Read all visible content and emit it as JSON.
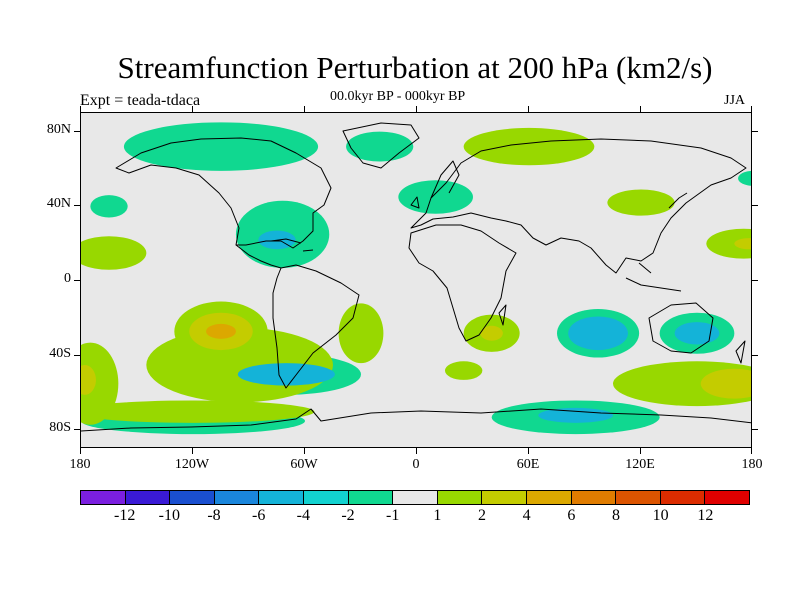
{
  "title": "Streamfunction Perturbation at 200 hPa (km2/s)",
  "left_label": "Expt = teada-tdaca",
  "center_label": "00.0kyr BP - 000kyr BP",
  "right_label": "JJA",
  "lat_labels": [
    "80N",
    "40N",
    "0",
    "40S",
    "80S"
  ],
  "lat_values": [
    80,
    40,
    0,
    -40,
    -80
  ],
  "lon_labels": [
    "180",
    "120W",
    "60W",
    "0",
    "60E",
    "120E",
    "180"
  ],
  "lon_values": [
    -180,
    -120,
    -60,
    0,
    60,
    120,
    180
  ],
  "colorbar": {
    "labels": [
      "-12",
      "-10",
      "-8",
      "-6",
      "-4",
      "-2",
      "-1",
      "1",
      "2",
      "4",
      "6",
      "8",
      "10",
      "12"
    ],
    "colors": [
      "#7b1fe0",
      "#3a1ad6",
      "#1a4fd0",
      "#1a86dc",
      "#14b3d8",
      "#12d2d0",
      "#10d890",
      "#e8e8e8",
      "#98d800",
      "#c4cc00",
      "#dca800",
      "#e07c00",
      "#dc5400",
      "#dc2c00",
      "#e00000"
    ]
  },
  "map_data": {
    "lon_range": [
      -180,
      180
    ],
    "lat_range": [
      -90,
      90
    ],
    "background_color": "#e8e8e8",
    "regions": [
      {
        "level": "-2",
        "color": "#10d890",
        "lon": -105,
        "lat": 72,
        "rx": 52,
        "ry": 13
      },
      {
        "level": "-2",
        "color": "#10d890",
        "lon": -20,
        "lat": 72,
        "rx": 18,
        "ry": 8
      },
      {
        "level": "-2",
        "color": "#10d890",
        "lon": -165,
        "lat": 40,
        "rx": 10,
        "ry": 6
      },
      {
        "level": "-2",
        "color": "#10d890",
        "lon": -72,
        "lat": 25,
        "rx": 25,
        "ry": 18
      },
      {
        "level": "-4",
        "color": "#14b3d8",
        "lon": -75,
        "lat": 22,
        "rx": 10,
        "ry": 5
      },
      {
        "level": "-2",
        "color": "#10d890",
        "lon": 10,
        "lat": 45,
        "rx": 20,
        "ry": 9
      },
      {
        "level": "-2",
        "color": "#10d890",
        "lon": 97,
        "lat": -28,
        "rx": 22,
        "ry": 13
      },
      {
        "level": "-4",
        "color": "#14b3d8",
        "lon": 97,
        "lat": -28,
        "rx": 16,
        "ry": 9
      },
      {
        "level": "-2",
        "color": "#10d890",
        "lon": 150,
        "lat": -28,
        "rx": 20,
        "ry": 11
      },
      {
        "level": "-4",
        "color": "#14b3d8",
        "lon": 150,
        "lat": -28,
        "rx": 12,
        "ry": 6
      },
      {
        "level": "-2",
        "color": "#10d890",
        "lon": -70,
        "lat": -50,
        "rx": 40,
        "ry": 11
      },
      {
        "level": "-4",
        "color": "#14b3d8",
        "lon": -70,
        "lat": -50,
        "rx": 26,
        "ry": 6
      },
      {
        "level": "-2",
        "color": "#10d890",
        "lon": 85,
        "lat": -73,
        "rx": 45,
        "ry": 9
      },
      {
        "level": "-4",
        "color": "#14b3d8",
        "lon": 85,
        "lat": -72,
        "rx": 20,
        "ry": 4
      },
      {
        "level": "-2",
        "color": "#10d890",
        "lon": -120,
        "lat": -75,
        "rx": 60,
        "ry": 7
      },
      {
        "level": "-2",
        "color": "#10d890",
        "lon": 180,
        "lat": 55,
        "rx": 8,
        "ry": 4
      },
      {
        "level": "2",
        "color": "#98d800",
        "lon": 60,
        "lat": 72,
        "rx": 35,
        "ry": 10
      },
      {
        "level": "2",
        "color": "#98d800",
        "lon": 120,
        "lat": 42,
        "rx": 18,
        "ry": 7
      },
      {
        "level": "2",
        "color": "#98d800",
        "lon": 175,
        "lat": 20,
        "rx": 20,
        "ry": 8
      },
      {
        "level": "4",
        "color": "#c4cc00",
        "lon": 178,
        "lat": 20,
        "rx": 8,
        "ry": 3
      },
      {
        "level": "2",
        "color": "#98d800",
        "lon": -165,
        "lat": 15,
        "rx": 20,
        "ry": 9
      },
      {
        "level": "2",
        "color": "#98d800",
        "lon": -105,
        "lat": -27,
        "rx": 25,
        "ry": 16
      },
      {
        "level": "4",
        "color": "#c4cc00",
        "lon": -105,
        "lat": -27,
        "rx": 17,
        "ry": 10
      },
      {
        "level": "6",
        "color": "#dca800",
        "lon": -105,
        "lat": -27,
        "rx": 8,
        "ry": 4
      },
      {
        "level": "2",
        "color": "#98d800",
        "lon": -30,
        "lat": -28,
        "rx": 12,
        "ry": 16
      },
      {
        "level": "2",
        "color": "#98d800",
        "lon": 40,
        "lat": -28,
        "rx": 15,
        "ry": 10
      },
      {
        "level": "4",
        "color": "#c4cc00",
        "lon": 40,
        "lat": -28,
        "rx": 6,
        "ry": 4
      },
      {
        "level": "2",
        "color": "#98d800",
        "lon": 25,
        "lat": -48,
        "rx": 10,
        "ry": 5
      },
      {
        "level": "2",
        "color": "#98d800",
        "lon": 150,
        "lat": -55,
        "rx": 45,
        "ry": 12
      },
      {
        "level": "4",
        "color": "#c4cc00",
        "lon": 170,
        "lat": -55,
        "rx": 18,
        "ry": 8
      },
      {
        "level": "2",
        "color": "#98d800",
        "lon": -175,
        "lat": -55,
        "rx": 15,
        "ry": 22
      },
      {
        "level": "4",
        "color": "#c4cc00",
        "lon": -178,
        "lat": -53,
        "rx": 6,
        "ry": 8
      },
      {
        "level": "2",
        "color": "#98d800",
        "lon": -120,
        "lat": -70,
        "rx": 65,
        "ry": 6
      },
      {
        "level": "2",
        "color": "#98d800",
        "lon": -95,
        "lat": -45,
        "rx": 50,
        "ry": 20
      }
    ]
  }
}
